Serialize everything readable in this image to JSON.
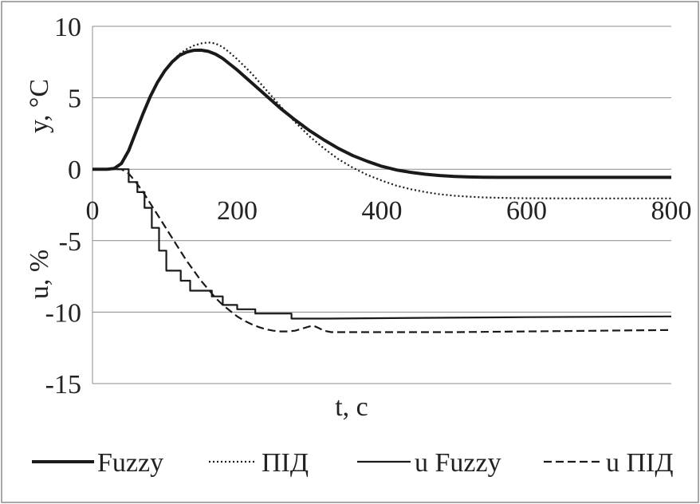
{
  "chart_data": {
    "type": "line",
    "xlabel": "t, c",
    "ylabel_top": "y, °C",
    "ylabel_bottom": "u, %",
    "xlim": [
      0,
      800
    ],
    "ylim": [
      -15,
      10
    ],
    "x_ticks": [
      0,
      200,
      400,
      600,
      800
    ],
    "x_tick_labels": [
      "0",
      "200",
      "400",
      "600",
      "800"
    ],
    "y_ticks": [
      10,
      5,
      0,
      -5,
      -10,
      -15
    ],
    "y_tick_labels": [
      "10",
      "5",
      "0",
      "-5",
      "-10",
      "-15"
    ],
    "grid": true,
    "legend_position": "bottom",
    "series": [
      {
        "name": "Fuzzy",
        "style": "solid-thick",
        "color": "#1a1a1a",
        "x": [
          0,
          20,
          30,
          40,
          50,
          60,
          70,
          80,
          90,
          100,
          110,
          120,
          130,
          140,
          150,
          160,
          170,
          180,
          190,
          200,
          220,
          240,
          260,
          280,
          300,
          320,
          340,
          360,
          380,
          400,
          420,
          440,
          460,
          480,
          500,
          520,
          540,
          560,
          580,
          600,
          650,
          700,
          750,
          800
        ],
        "y": [
          0,
          0,
          0.05,
          0.4,
          1.3,
          2.6,
          3.9,
          5.1,
          6.1,
          6.9,
          7.5,
          7.95,
          8.2,
          8.32,
          8.33,
          8.25,
          8.05,
          7.75,
          7.35,
          6.95,
          6.05,
          5.15,
          4.25,
          3.45,
          2.7,
          2.05,
          1.45,
          0.95,
          0.55,
          0.2,
          -0.05,
          -0.22,
          -0.35,
          -0.44,
          -0.5,
          -0.54,
          -0.56,
          -0.57,
          -0.57,
          -0.57,
          -0.57,
          -0.57,
          -0.57,
          -0.57
        ]
      },
      {
        "name": "ПІД",
        "style": "dotted",
        "color": "#1a1a1a",
        "x": [
          0,
          20,
          30,
          40,
          50,
          60,
          70,
          80,
          90,
          100,
          110,
          120,
          130,
          140,
          150,
          160,
          170,
          180,
          190,
          200,
          220,
          240,
          260,
          280,
          300,
          320,
          340,
          360,
          380,
          400,
          420,
          440,
          460,
          480,
          500,
          520,
          540,
          560,
          580,
          600,
          650,
          700,
          750,
          800
        ],
        "y": [
          0,
          0,
          0.05,
          0.4,
          1.3,
          2.6,
          3.9,
          5.1,
          6.1,
          6.9,
          7.55,
          8.05,
          8.4,
          8.65,
          8.8,
          8.87,
          8.8,
          8.55,
          8.15,
          7.7,
          6.7,
          5.55,
          4.4,
          3.3,
          2.3,
          1.45,
          0.7,
          0.1,
          -0.4,
          -0.8,
          -1.15,
          -1.4,
          -1.6,
          -1.75,
          -1.85,
          -1.92,
          -1.97,
          -2.0,
          -2.02,
          -2.03,
          -2.04,
          -2.04,
          -2.04,
          -2.04
        ]
      },
      {
        "name": "u Fuzzy",
        "style": "solid-step",
        "color": "#1a1a1a",
        "x": [
          0,
          50,
          50,
          62,
          62,
          72,
          72,
          82,
          82,
          92,
          92,
          102,
          102,
          112,
          112,
          122,
          122,
          135,
          135,
          150,
          150,
          165,
          165,
          180,
          180,
          200,
          200,
          225,
          225,
          250,
          250,
          275,
          275,
          300,
          300,
          325,
          325,
          450,
          600,
          800
        ],
        "y": [
          0,
          0,
          -0.9,
          -0.9,
          -1.6,
          -1.6,
          -2.7,
          -2.7,
          -4.1,
          -4.1,
          -5.7,
          -5.7,
          -7.1,
          -7.1,
          -7.1,
          -7.1,
          -7.8,
          -7.8,
          -8.5,
          -8.5,
          -8.5,
          -8.5,
          -8.9,
          -8.9,
          -9.5,
          -9.5,
          -9.8,
          -9.8,
          -10.1,
          -10.1,
          -10.1,
          -10.1,
          -10.45,
          -10.45,
          -10.45,
          -10.45,
          -10.45,
          -10.4,
          -10.35,
          -10.3
        ]
      },
      {
        "name": "u ПІД",
        "style": "dashed",
        "color": "#1a1a1a",
        "x": [
          0,
          40,
          50,
          60,
          70,
          80,
          90,
          100,
          110,
          120,
          130,
          140,
          150,
          160,
          170,
          180,
          190,
          200,
          210,
          220,
          230,
          240,
          250,
          260,
          270,
          280,
          290,
          300,
          305,
          310,
          320,
          330,
          340,
          360,
          400,
          500,
          600,
          700,
          800
        ],
        "y": [
          0,
          0,
          -0.3,
          -0.9,
          -1.6,
          -2.4,
          -3.2,
          -4.0,
          -4.8,
          -5.6,
          -6.4,
          -7.1,
          -7.8,
          -8.4,
          -9.0,
          -9.5,
          -9.9,
          -10.3,
          -10.6,
          -10.85,
          -11.05,
          -11.2,
          -11.3,
          -11.35,
          -11.35,
          -11.3,
          -11.15,
          -11.0,
          -10.95,
          -11.05,
          -11.3,
          -11.4,
          -11.4,
          -11.4,
          -11.4,
          -11.4,
          -11.35,
          -11.3,
          -11.25
        ]
      }
    ]
  }
}
